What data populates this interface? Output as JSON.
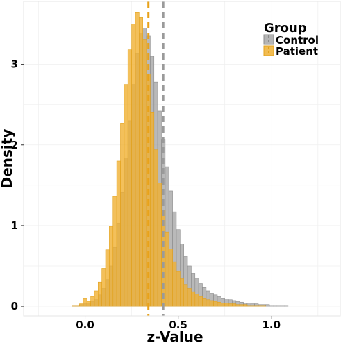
{
  "chart_data": {
    "type": "histogram",
    "xlabel": "z-Value",
    "ylabel": "Density",
    "xlim": [
      -0.33,
      1.37
    ],
    "ylim": [
      -0.12,
      3.78
    ],
    "x_ticks": [
      0.0,
      0.5,
      1.0
    ],
    "x_tick_labels": [
      "0.0",
      "0.5",
      "1.0"
    ],
    "y_ticks": [
      0,
      1,
      2,
      3
    ],
    "y_tick_labels": [
      "0",
      "1",
      "2",
      "3"
    ],
    "grid": true,
    "legend": {
      "title": "Group",
      "position": "top-right",
      "entries": [
        "Control",
        "Patient"
      ]
    },
    "bin_width": 0.02,
    "series": [
      {
        "name": "Control",
        "color": "#a8a8a8",
        "mean_line": 0.42,
        "x": [
          -0.24,
          -0.22,
          -0.2,
          -0.18,
          -0.16,
          -0.14,
          -0.12,
          -0.1,
          -0.08,
          -0.06,
          -0.04,
          -0.02,
          0.0,
          0.02,
          0.04,
          0.06,
          0.08,
          0.1,
          0.12,
          0.14,
          0.16,
          0.18,
          0.2,
          0.22,
          0.24,
          0.26,
          0.28,
          0.3,
          0.32,
          0.34,
          0.36,
          0.38,
          0.4,
          0.42,
          0.44,
          0.46,
          0.48,
          0.5,
          0.52,
          0.54,
          0.56,
          0.58,
          0.6,
          0.62,
          0.64,
          0.66,
          0.68,
          0.7,
          0.72,
          0.74,
          0.76,
          0.78,
          0.8,
          0.82,
          0.84,
          0.86,
          0.88,
          0.9,
          0.92,
          0.94,
          0.96,
          0.98,
          1.0,
          1.02,
          1.04,
          1.06,
          1.08,
          1.1,
          1.12,
          1.14,
          1.16,
          1.18,
          1.2,
          1.22,
          1.24,
          1.26,
          1.28
        ],
        "y": [
          0.0,
          0.0,
          0.0,
          0.0,
          0.0,
          0.0,
          0.0,
          0.0,
          0.0,
          0.01,
          0.01,
          0.02,
          0.03,
          0.04,
          0.06,
          0.09,
          0.14,
          0.22,
          0.33,
          0.5,
          0.73,
          1.03,
          1.41,
          1.84,
          2.3,
          2.75,
          3.13,
          3.39,
          3.45,
          3.35,
          3.1,
          2.78,
          2.42,
          2.07,
          1.73,
          1.43,
          1.17,
          0.95,
          0.77,
          0.62,
          0.5,
          0.41,
          0.34,
          0.28,
          0.23,
          0.19,
          0.16,
          0.14,
          0.12,
          0.1,
          0.09,
          0.08,
          0.07,
          0.06,
          0.05,
          0.04,
          0.04,
          0.03,
          0.03,
          0.02,
          0.02,
          0.02,
          0.01,
          0.01,
          0.01,
          0.01,
          0.01,
          0.0,
          0.0,
          0.0,
          0.0,
          0.0,
          0.0,
          0.0,
          0.0,
          0.0,
          0.0
        ]
      },
      {
        "name": "Patient",
        "color": "#f0b032",
        "mean_line": 0.34,
        "x": [
          -0.24,
          -0.22,
          -0.2,
          -0.18,
          -0.16,
          -0.14,
          -0.12,
          -0.1,
          -0.08,
          -0.06,
          -0.04,
          -0.02,
          0.0,
          0.02,
          0.04,
          0.06,
          0.08,
          0.1,
          0.12,
          0.14,
          0.16,
          0.18,
          0.2,
          0.22,
          0.24,
          0.26,
          0.28,
          0.3,
          0.32,
          0.34,
          0.36,
          0.38,
          0.4,
          0.42,
          0.44,
          0.46,
          0.48,
          0.5,
          0.52,
          0.54,
          0.56,
          0.58,
          0.6,
          0.62,
          0.64,
          0.66,
          0.68,
          0.7,
          0.72,
          0.74,
          0.76,
          0.78,
          0.8,
          0.82,
          0.84,
          0.86,
          0.88,
          0.9,
          0.92,
          0.94,
          0.96,
          0.98,
          1.0,
          1.02,
          1.04,
          1.06,
          1.08,
          1.1,
          1.12,
          1.14,
          1.16,
          1.18,
          1.2,
          1.22,
          1.24,
          1.26,
          1.28
        ],
        "y": [
          0.0,
          0.0,
          0.0,
          0.0,
          0.0,
          0.0,
          0.0,
          0.0,
          0.0,
          0.01,
          0.01,
          0.03,
          0.1,
          0.06,
          0.12,
          0.19,
          0.3,
          0.47,
          0.7,
          0.99,
          1.36,
          1.8,
          2.27,
          2.75,
          3.18,
          3.5,
          3.64,
          3.58,
          3.31,
          2.88,
          2.4,
          1.94,
          1.53,
          1.19,
          0.92,
          0.71,
          0.55,
          0.43,
          0.34,
          0.27,
          0.22,
          0.18,
          0.15,
          0.12,
          0.1,
          0.08,
          0.07,
          0.06,
          0.05,
          0.04,
          0.04,
          0.03,
          0.03,
          0.02,
          0.02,
          0.02,
          0.01,
          0.01,
          0.01,
          0.01,
          0.01,
          0.0,
          0.0,
          0.0,
          0.0,
          0.0,
          0.0,
          0.0,
          0.0,
          0.0,
          0.0,
          0.0,
          0.0,
          0.0,
          0.0,
          0.0,
          0.0
        ]
      }
    ]
  }
}
